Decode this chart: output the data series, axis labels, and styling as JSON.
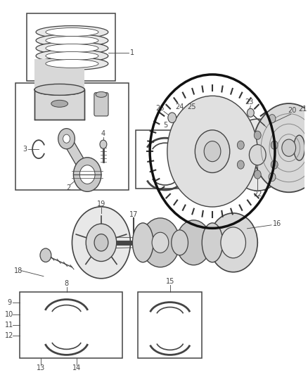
{
  "bg_color": "#ffffff",
  "fig_width": 4.38,
  "fig_height": 5.33,
  "dpi": 100,
  "line_color": "#444444",
  "label_color": "#222222",
  "label_fontsize": 7.0
}
